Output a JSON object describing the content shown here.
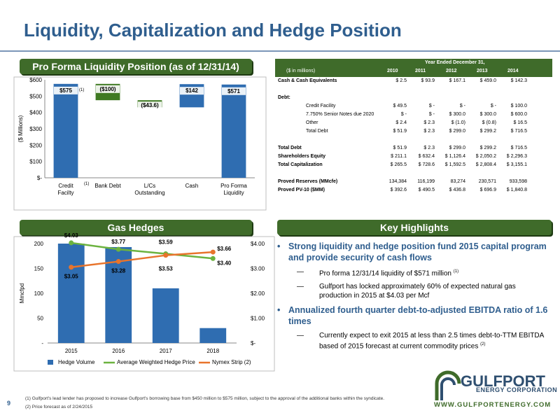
{
  "title": "Liquidity, Capitalization and Hedge Position",
  "page_number": "9",
  "sections": {
    "liquidity": "Pro Forma Liquidity Position (as of 12/31/14)",
    "hedges": "Gas Hedges",
    "highlights": "Key Highlights"
  },
  "chart_data": [
    {
      "type": "bar",
      "subtype": "waterfall",
      "categories": [
        "Credit Facilty",
        "Bank Debt",
        "L/Cs Outstanding",
        "Cash",
        "Pro Forma Liquidity"
      ],
      "values": [
        575,
        -100,
        -43.6,
        142,
        571
      ],
      "data_labels": [
        "$575",
        "($100)",
        "($43.6)",
        "$142",
        "$571"
      ],
      "first_label_footnote": "(1)",
      "first_category_footnote": "(1)",
      "ylabel": "($ Millions)",
      "yticks": [
        "$-",
        "$100",
        "$200",
        "$300",
        "$400",
        "$500",
        "$600"
      ],
      "ylim": [
        0,
        600
      ],
      "colors": {
        "positive": "#2f6db1",
        "negative": "#3f7a22"
      }
    },
    {
      "type": "bar",
      "categories": [
        "2015",
        "2016",
        "2017",
        "2018"
      ],
      "series": [
        {
          "name": "Hedge Volume",
          "values": [
            200,
            193,
            110,
            30
          ],
          "axis": "left",
          "color": "#2f6db1"
        },
        {
          "name": "Average Weighted Hedge Price",
          "values": [
            4.03,
            3.77,
            3.59,
            3.4
          ],
          "axis": "right",
          "color": "#6cb33f",
          "labels": [
            "$4.03",
            "$3.77",
            "$3.59",
            "$3.40"
          ]
        },
        {
          "name": "Nymex Strip (2)",
          "values": [
            3.05,
            3.28,
            3.53,
            3.66
          ],
          "axis": "right",
          "color": "#e8742c",
          "labels": [
            "$3.05",
            "$3.28",
            "$3.53",
            "$3.66"
          ]
        }
      ],
      "ylabel": "Mmcfpd",
      "ylim": [
        0,
        200
      ],
      "yticks": [
        "-",
        "50",
        "100",
        "150",
        "200"
      ],
      "y2lim": [
        0,
        4
      ],
      "y2ticks": [
        "$-",
        "$1.00",
        "$2.00",
        "$3.00",
        "$4.00"
      ],
      "legend_position": "bottom"
    }
  ],
  "table": {
    "header_title": "Year Ended December 31,",
    "unit_label": "($ in millions)",
    "years": [
      "2010",
      "2011",
      "2012",
      "2013",
      "2014"
    ],
    "rows": [
      {
        "label": "Cash & Cash Equivalents",
        "bold": true,
        "indent": false,
        "values": [
          "$ 2.5",
          "$ 93.9",
          "$ 167.1",
          "$ 459.0",
          "$ 142.3"
        ]
      },
      {
        "label": "",
        "bold": false,
        "indent": false,
        "values": [
          "",
          "",
          "",
          "",
          ""
        ]
      },
      {
        "label": "Debt:",
        "bold": true,
        "indent": false,
        "values": [
          "",
          "",
          "",
          "",
          ""
        ]
      },
      {
        "label": "Credit Facility",
        "bold": false,
        "indent": true,
        "values": [
          "$ 49.5",
          "$ -",
          "$ -",
          "$ -",
          "$ 100.0"
        ]
      },
      {
        "label": "7.750% Senior Notes due 2020",
        "bold": false,
        "indent": true,
        "values": [
          "$ -",
          "$ -",
          "$ 300.0",
          "$ 300.0",
          "$ 600.0"
        ]
      },
      {
        "label": "Other",
        "bold": false,
        "indent": true,
        "values": [
          "$ 2.4",
          "$ 2.3",
          "$ (1.0)",
          "$ (0.8)",
          "$ 16.5"
        ]
      },
      {
        "label": "Total Debt",
        "bold": false,
        "indent": true,
        "values": [
          "$ 51.9",
          "$ 2.3",
          "$ 299.0",
          "$ 299.2",
          "$ 716.5"
        ]
      },
      {
        "label": "",
        "bold": false,
        "indent": false,
        "values": [
          "",
          "",
          "",
          "",
          ""
        ]
      },
      {
        "label": "Total Debt",
        "bold": true,
        "indent": false,
        "values": [
          "$ 51.9",
          "$ 2.3",
          "$ 299.0",
          "$ 299.2",
          "$ 716.5"
        ]
      },
      {
        "label": "Shareholders Equity",
        "bold": true,
        "indent": false,
        "values": [
          "$ 211.1",
          "$ 632.4",
          "$ 1,126.4",
          "$ 2,050.2",
          "$ 2,296.3"
        ]
      },
      {
        "label": "Total Capitalization",
        "bold": true,
        "indent": false,
        "values": [
          "$ 265.5",
          "$ 728.6",
          "$ 1,592.5",
          "$ 2,808.4",
          "$ 3,155.1"
        ]
      },
      {
        "label": "",
        "bold": false,
        "indent": false,
        "values": [
          "",
          "",
          "",
          "",
          ""
        ]
      },
      {
        "label": "Proved Reserves (MMcfe)",
        "bold": true,
        "indent": false,
        "values": [
          "134,384",
          "116,199",
          "83,274",
          "230,571",
          "933,598"
        ]
      },
      {
        "label": "Proved PV-10 ($MM)",
        "bold": true,
        "indent": false,
        "values": [
          "$ 392.6",
          "$ 490.5",
          "$ 436.8",
          "$ 696.9",
          "$ 1,840.8"
        ]
      }
    ]
  },
  "highlights": [
    {
      "type": "bullet",
      "text": "Strong liquidity and hedge position fund 2015 capital program and provide security of cash flows"
    },
    {
      "type": "sub",
      "text": "Pro forma 12/31/14 liquidity of $571 million",
      "note": "(1)"
    },
    {
      "type": "sub",
      "text": "Gulfport has locked approximately 60% of expected natural gas production in 2015 at $4.03 per Mcf",
      "note": ""
    },
    {
      "type": "bullet",
      "text": "Annualized fourth quarter debt-to-adjusted EBITDA ratio of 1.6 times"
    },
    {
      "type": "sub",
      "text": "Currently expect to exit 2015 at less than 2.5 times debt-to-TTM EBITDA based of 2015 forecast at current commodity prices",
      "note": "(2)"
    }
  ],
  "footnotes": [
    "(1)    Gulfport's lead lender has proposed to increase Gulfport's borrowing base from $450 million to $575 million, subject to the approval of the additional banks within the syndicate.",
    "(2)    Price forecast as of 2/24/2015"
  ],
  "logo": {
    "name": "GULFPORT",
    "subtitle": "ENERGY CORPORATION",
    "url": "WWW.GULFPORTENERGY.COM"
  }
}
